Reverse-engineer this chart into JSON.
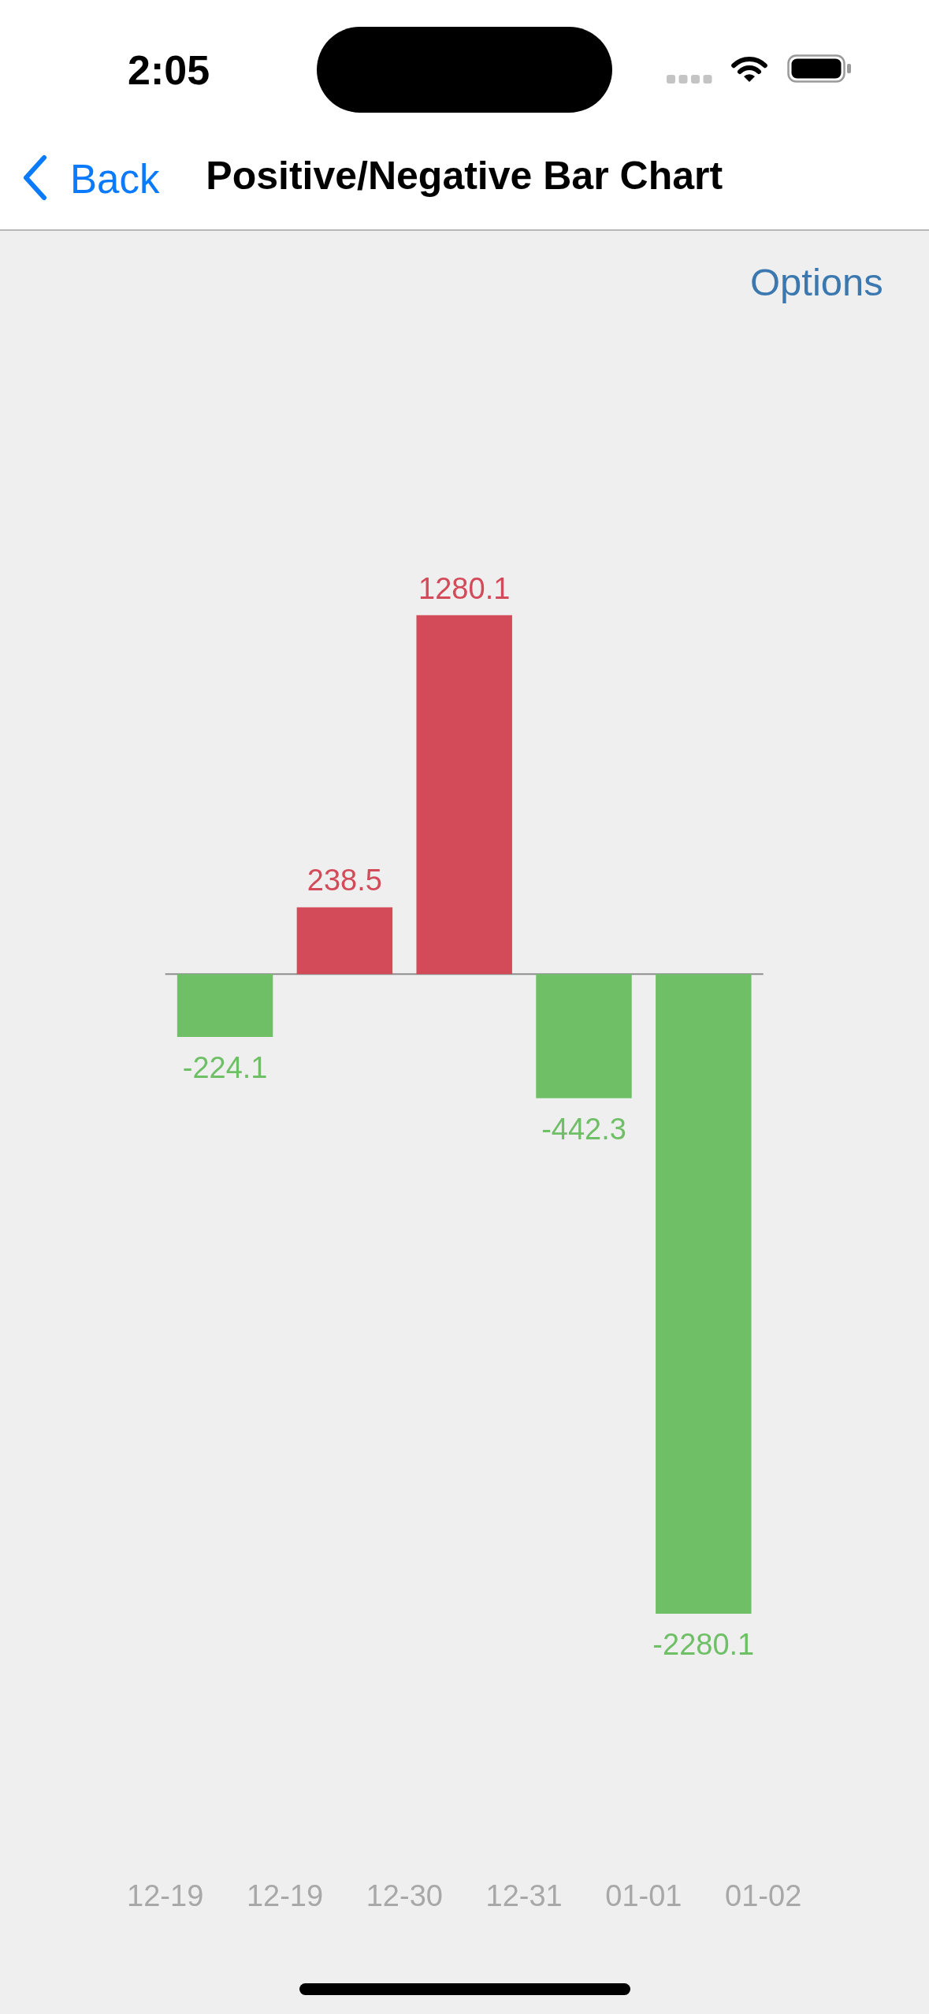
{
  "chart_data": {
    "type": "bar",
    "title": "Positive/Negative Bar Chart",
    "annotations": [
      "2:05",
      "Back",
      "Options"
    ],
    "categories": [
      "12-19",
      null,
      "12-19",
      null,
      "12-30",
      null,
      "12-31",
      null,
      "01-01",
      null,
      "01-02"
    ],
    "values": [
      null,
      -224.1,
      null,
      238.5,
      null,
      1280.1,
      null,
      -442.3,
      null,
      -2280.1,
      null
    ],
    "colors": [
      null,
      "#6fbf67",
      null,
      "#d34a59",
      null,
      "#d34a59",
      null,
      "#6fbf67",
      null,
      "#6fbf67",
      null
    ],
    "data_labels": true,
    "tick_labels": "x"
  }
}
